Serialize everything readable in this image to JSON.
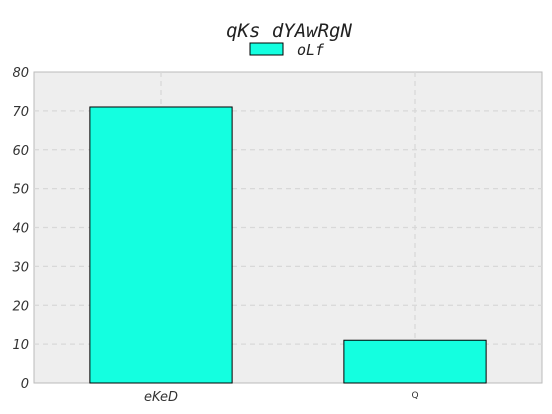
{
  "chart_data": {
    "type": "bar",
    "title": "qKs dYAwRgN",
    "xlabel": "",
    "ylabel": "",
    "categories": [
      "eKeD",
      "Q"
    ],
    "series": [
      {
        "name": "oLf",
        "values": [
          71,
          11
        ],
        "color": "#14ffe0"
      }
    ],
    "ylim": [
      0,
      80
    ],
    "yticks": [
      0,
      10,
      20,
      30,
      40,
      50,
      60,
      70,
      80
    ],
    "grid": true,
    "legend_position": "top-center",
    "colors": {
      "background": "#eeeeee",
      "grid": "#d8d8d8",
      "bar_edge": "#000000"
    }
  }
}
